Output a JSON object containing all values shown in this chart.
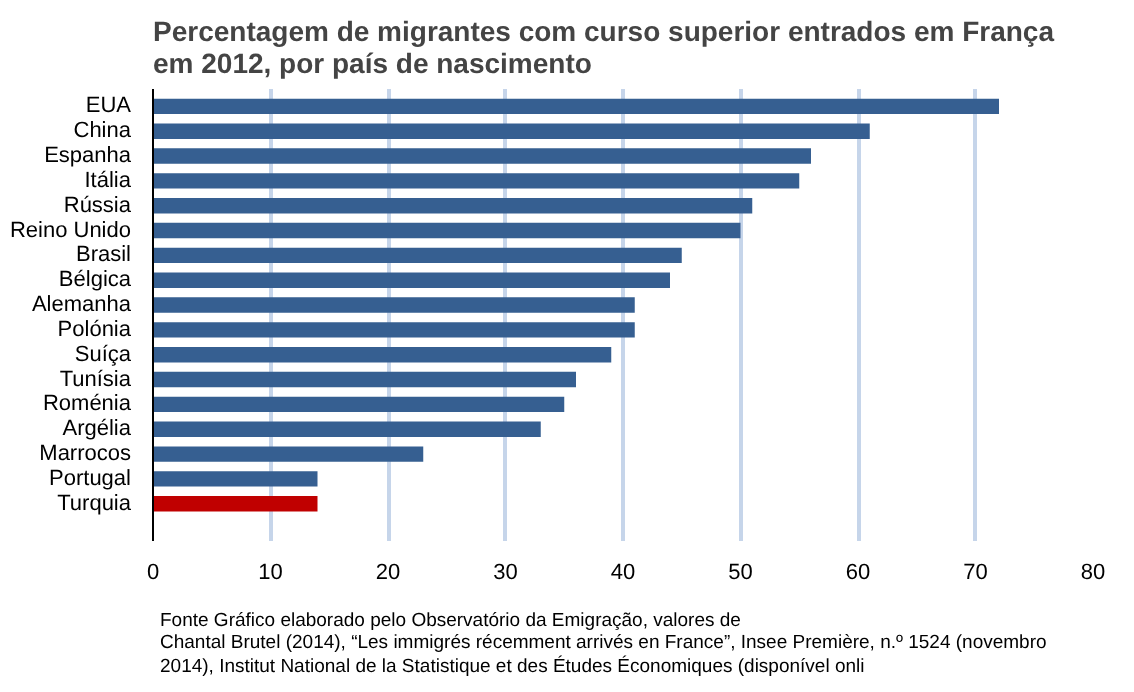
{
  "chart_data": {
    "type": "bar",
    "orientation": "horizontal",
    "title": "Percentagem de migrantes com curso superior entrados em França\nem 2012, por país de nascimento",
    "categories": [
      "EUA",
      "China",
      "Espanha",
      "Itália",
      "Rússia",
      "Reino Unido",
      "Brasil",
      "Bélgica",
      "Alemanha",
      "Polónia",
      "Suíça",
      "Tunísia",
      "Roménia",
      "Argélia",
      "Marrocos",
      "Portugal",
      "Turquia"
    ],
    "values": [
      72,
      61,
      56,
      55,
      51,
      50,
      45,
      44,
      41,
      41,
      39,
      36,
      35,
      33,
      23,
      14,
      14
    ],
    "colors": [
      "#365f91",
      "#365f91",
      "#365f91",
      "#365f91",
      "#365f91",
      "#365f91",
      "#365f91",
      "#365f91",
      "#365f91",
      "#365f91",
      "#365f91",
      "#365f91",
      "#365f91",
      "#365f91",
      "#365f91",
      "#365f91",
      "#c00000"
    ],
    "xlim": [
      0,
      80
    ],
    "xticks": [
      0,
      10,
      20,
      30,
      40,
      50,
      60,
      70,
      80
    ],
    "grid": "x",
    "annotations": [
      "Fonte  Gráfico elaborado pelo Observatório da Emigração, valores de",
      "Chantal Brutel (2014), “Les immigrés récemment arrivés en France”, Insee Première,  n.º 1524 (novembro",
      "2014), Institut National de la Statistique et des Études Économiques (disponível onli"
    ]
  }
}
